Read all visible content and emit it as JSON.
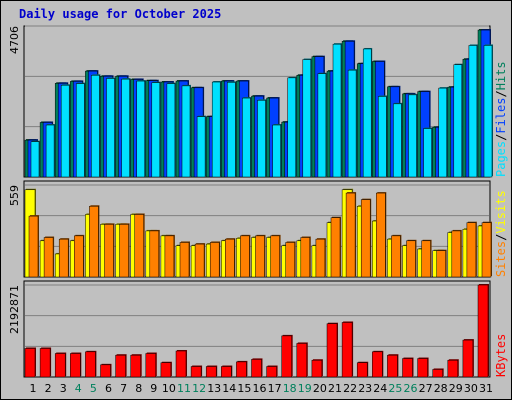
{
  "title": "Daily usage for October 2025",
  "colors": {
    "hits": "#00805c",
    "files": "#0040ff",
    "pages": "#00e0ff",
    "visits": "#ffff00",
    "sites": "#ff8000",
    "kbytes": "#ff0000",
    "weekend_day_label": "#00805c",
    "weekday_day_label": "#000000",
    "background": "#c0c0c0"
  },
  "chart_data": [
    {
      "type": "bar",
      "title": "Daily usage for October 2025",
      "axis_max_label": "4706",
      "ylim": [
        0,
        4706
      ],
      "categories": [
        "1",
        "2",
        "3",
        "4",
        "5",
        "6",
        "7",
        "8",
        "9",
        "10",
        "11",
        "12",
        "13",
        "14",
        "15",
        "16",
        "17",
        "18",
        "19",
        "20",
        "21",
        "22",
        "23",
        "24",
        "25",
        "26",
        "27",
        "28",
        "29",
        "30",
        "31"
      ],
      "weekend_days": [
        "4",
        "5",
        "11",
        "12",
        "18",
        "19",
        "25",
        "26"
      ],
      "series": [
        {
          "name": "Hits",
          "values": [
            1150,
            1700,
            2920,
            2980,
            3300,
            3140,
            3140,
            3040,
            3000,
            2960,
            2990,
            2780,
            1880,
            2990,
            2990,
            2520,
            2460,
            1710,
            3170,
            3750,
            3300,
            4230,
            3530,
            3600,
            2810,
            2590,
            2660,
            1550,
            2800,
            3670,
            4580
          ]
        },
        {
          "name": "Files",
          "values": [
            1150,
            1700,
            2920,
            2980,
            3300,
            3140,
            3140,
            3040,
            3000,
            2960,
            2990,
            2780,
            1880,
            2990,
            2990,
            2520,
            2460,
            1710,
            3170,
            3750,
            3300,
            4230,
            3530,
            3600,
            2810,
            2590,
            2660,
            1550,
            2800,
            3670,
            4580
          ]
        },
        {
          "name": "Pages",
          "values": [
            1100,
            1620,
            2860,
            2910,
            3170,
            3070,
            3050,
            2990,
            2940,
            2910,
            2840,
            1880,
            2960,
            2950,
            2460,
            2390,
            1620,
            3090,
            3660,
            3220,
            4140,
            3330,
            3990,
            2510,
            2280,
            2560,
            1510,
            2770,
            3500,
            4100,
            4100
          ]
        }
      ],
      "legend": "right side, vertical: Pages / Files / Hits"
    },
    {
      "type": "bar",
      "axis_max_label": "559",
      "ylim": [
        0,
        559
      ],
      "categories": [
        "1",
        "2",
        "3",
        "4",
        "5",
        "6",
        "7",
        "8",
        "9",
        "10",
        "11",
        "12",
        "13",
        "14",
        "15",
        "16",
        "17",
        "18",
        "19",
        "20",
        "21",
        "22",
        "23",
        "24",
        "25",
        "26",
        "27",
        "28",
        "29",
        "30",
        "31"
      ],
      "series": [
        {
          "name": "Visits",
          "values": [
            530,
            220,
            140,
            220,
            380,
            320,
            320,
            380,
            280,
            250,
            190,
            190,
            200,
            220,
            235,
            240,
            240,
            190,
            220,
            190,
            330,
            530,
            430,
            340,
            230,
            190,
            170,
            160,
            270,
            290,
            310
          ]
        },
        {
          "name": "Sites",
          "values": [
            370,
            240,
            230,
            250,
            430,
            320,
            320,
            380,
            280,
            250,
            210,
            200,
            210,
            230,
            250,
            250,
            250,
            210,
            240,
            230,
            360,
            510,
            470,
            510,
            250,
            220,
            220,
            160,
            280,
            330,
            330
          ]
        }
      ],
      "legend": "right side, vertical: Sites / Visits"
    },
    {
      "type": "bar",
      "axis_max_label": "2192871",
      "ylim": [
        0,
        2192871
      ],
      "categories": [
        "1",
        "2",
        "3",
        "4",
        "5",
        "6",
        "7",
        "8",
        "9",
        "10",
        "11",
        "12",
        "13",
        "14",
        "15",
        "16",
        "17",
        "18",
        "19",
        "20",
        "21",
        "22",
        "23",
        "24",
        "25",
        "26",
        "27",
        "28",
        "29",
        "30",
        "31"
      ],
      "series": [
        {
          "name": "KBytes",
          "values": [
            680000,
            680000,
            560000,
            560000,
            600000,
            290000,
            520000,
            520000,
            560000,
            340000,
            620000,
            250000,
            250000,
            250000,
            360000,
            420000,
            250000,
            980000,
            800000,
            400000,
            1270000,
            1300000,
            340000,
            600000,
            520000,
            440000,
            440000,
            180000,
            400000,
            880000,
            2192871
          ]
        }
      ],
      "legend": "right side, vertical: KBytes"
    }
  ]
}
